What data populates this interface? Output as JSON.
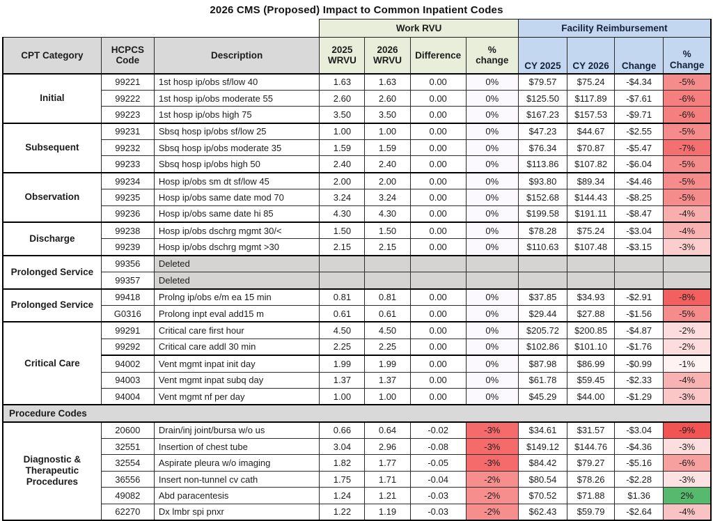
{
  "title": "2026 CMS (Proposed) Impact to Common Inpatient Codes",
  "header": {
    "cpt_category": "CPT Category",
    "hcpcs": "HCPCS\nCode",
    "description": "Description",
    "work_rvu_group": "Work RVU",
    "facility_group": "Facility Reimbursement",
    "w2025": "2025\nWRVU",
    "w2026": "2026\nWRVU",
    "difference": "Difference",
    "wpct": "%\nchange",
    "cy2025": "CY 2025",
    "cy2026": "CY 2026",
    "change": "Change",
    "fpct": "%\nChange"
  },
  "colors": {
    "work_band": "#e8eed9",
    "facility_band": "#c3d7f0",
    "header_gray": "#d9d9d9",
    "deleted_gray": "#d6d3d3",
    "zero_tint": "#fbf9fd",
    "positive_green": "#57b96d"
  },
  "sections": [
    {
      "category": "Initial",
      "rows": [
        {
          "code": "99221",
          "desc": "1st hosp ip/obs sf/low 40",
          "w25": "1.63",
          "w26": "1.63",
          "diff": "0.00",
          "wpct": "0%",
          "wpct_bg": "#fbf9fd",
          "cy25": "$79.57",
          "cy26": "$75.24",
          "chg": "-$4.34",
          "fpct": "-5%",
          "fpct_bg": "#f68b8b"
        },
        {
          "code": "99222",
          "desc": "1st hosp ip/obs moderate 55",
          "w25": "2.60",
          "w26": "2.60",
          "diff": "0.00",
          "wpct": "0%",
          "wpct_bg": "#fbf9fd",
          "cy25": "$125.50",
          "cy26": "$117.89",
          "chg": "-$7.61",
          "fpct": "-6%",
          "fpct_bg": "#f57f7f"
        },
        {
          "code": "99223",
          "desc": "1st hosp ip/obs high 75",
          "w25": "3.50",
          "w26": "3.50",
          "diff": "0.00",
          "wpct": "0%",
          "wpct_bg": "#fbf9fd",
          "cy25": "$167.23",
          "cy26": "$157.53",
          "chg": "-$9.71",
          "fpct": "-6%",
          "fpct_bg": "#f57f7f"
        }
      ]
    },
    {
      "category": "Subsequent",
      "rows": [
        {
          "code": "99231",
          "desc": "Sbsq hosp ip/obs sf/low 25",
          "w25": "1.00",
          "w26": "1.00",
          "diff": "0.00",
          "wpct": "0%",
          "wpct_bg": "#fbf9fd",
          "cy25": "$47.23",
          "cy26": "$44.67",
          "chg": "-$2.55",
          "fpct": "-5%",
          "fpct_bg": "#f68b8b"
        },
        {
          "code": "99232",
          "desc": "Sbsq hosp ip/obs moderate 35",
          "w25": "1.59",
          "w26": "1.59",
          "diff": "0.00",
          "wpct": "0%",
          "wpct_bg": "#fbf9fd",
          "cy25": "$76.34",
          "cy26": "$70.87",
          "chg": "-$5.47",
          "fpct": "-7%",
          "fpct_bg": "#f47070"
        },
        {
          "code": "99233",
          "desc": "Sbsq hosp ip/obs high 50",
          "w25": "2.40",
          "w26": "2.40",
          "diff": "0.00",
          "wpct": "0%",
          "wpct_bg": "#fbf9fd",
          "cy25": "$113.86",
          "cy26": "$107.82",
          "chg": "-$6.04",
          "fpct": "-5%",
          "fpct_bg": "#f68b8b"
        }
      ]
    },
    {
      "category": "Observation",
      "rows": [
        {
          "code": "99234",
          "desc": "Hosp ip/obs sm dt sf/low 45",
          "w25": "2.00",
          "w26": "2.00",
          "diff": "0.00",
          "wpct": "0%",
          "wpct_bg": "#fbf9fd",
          "cy25": "$93.80",
          "cy26": "$89.34",
          "chg": "-$4.46",
          "fpct": "-5%",
          "fpct_bg": "#f68b8b"
        },
        {
          "code": "99235",
          "desc": "Hosp ip/obs same date mod 70",
          "w25": "3.24",
          "w26": "3.24",
          "diff": "0.00",
          "wpct": "0%",
          "wpct_bg": "#fbf9fd",
          "cy25": "$152.68",
          "cy26": "$144.43",
          "chg": "-$8.25",
          "fpct": "-5%",
          "fpct_bg": "#f68b8b"
        },
        {
          "code": "99236",
          "desc": "Hosp ip/obs same date hi 85",
          "w25": "4.30",
          "w26": "4.30",
          "diff": "0.00",
          "wpct": "0%",
          "wpct_bg": "#fbf9fd",
          "cy25": "$199.58",
          "cy26": "$191.11",
          "chg": "-$8.47",
          "fpct": "-4%",
          "fpct_bg": "#f9aeae"
        }
      ]
    },
    {
      "category": "Discharge",
      "rows": [
        {
          "code": "99238",
          "desc": "Hosp ip/obs dschrg mgmt 30/<",
          "w25": "1.50",
          "w26": "1.50",
          "diff": "0.00",
          "wpct": "0%",
          "wpct_bg": "#fbf9fd",
          "cy25": "$78.28",
          "cy26": "$75.24",
          "chg": "-$3.04",
          "fpct": "-4%",
          "fpct_bg": "#f9b2b2"
        },
        {
          "code": "99239",
          "desc": "Hosp ip/obs dschrg mgmt >30",
          "w25": "2.15",
          "w26": "2.15",
          "diff": "0.00",
          "wpct": "0%",
          "wpct_bg": "#fbf9fd",
          "cy25": "$110.63",
          "cy26": "$107.48",
          "chg": "-$3.15",
          "fpct": "-3%",
          "fpct_bg": "#fbcdcd"
        }
      ]
    },
    {
      "category": "Prolonged Service",
      "rows": [
        {
          "code": "99356",
          "desc": "Deleted",
          "deleted": true
        },
        {
          "code": "99357",
          "desc": "Deleted",
          "deleted": true
        }
      ]
    },
    {
      "category": "Prolonged Service",
      "rows": [
        {
          "code": "99418",
          "desc": "Prolng ip/obs e/m ea 15 min",
          "w25": "0.81",
          "w26": "0.81",
          "diff": "0.00",
          "wpct": "0%",
          "wpct_bg": "#fbf9fd",
          "cy25": "$37.85",
          "cy26": "$34.93",
          "chg": "-$2.91",
          "fpct": "-8%",
          "fpct_bg": "#f36060"
        },
        {
          "code": "G0316",
          "desc": "Prolong inpt eval add15 m",
          "w25": "0.61",
          "w26": "0.61",
          "diff": "0.00",
          "wpct": "0%",
          "wpct_bg": "#fbf9fd",
          "cy25": "$29.44",
          "cy26": "$27.88",
          "chg": "-$1.56",
          "fpct": "-5%",
          "fpct_bg": "#f68b8b"
        }
      ]
    },
    {
      "category": "Critical Care",
      "rows": [
        {
          "code": "99291",
          "desc": "Critical care first hour",
          "w25": "4.50",
          "w26": "4.50",
          "diff": "0.00",
          "wpct": "0%",
          "wpct_bg": "#fbf9fd",
          "cy25": "$205.72",
          "cy26": "$200.85",
          "chg": "-$4.87",
          "fpct": "-2%",
          "fpct_bg": "#fcdcdc"
        },
        {
          "code": "99292",
          "desc": "Critical care addl 30 min",
          "w25": "2.25",
          "w26": "2.25",
          "diff": "0.00",
          "wpct": "0%",
          "wpct_bg": "#fbf9fd",
          "cy25": "$102.86",
          "cy26": "$101.10",
          "chg": "-$1.76",
          "fpct": "-2%",
          "fpct_bg": "#fcdcdc"
        },
        {
          "code": "94002",
          "desc": "Vent mgmt inpat init day",
          "w25": "1.99",
          "w26": "1.99",
          "diff": "0.00",
          "wpct": "0%",
          "wpct_bg": "#fbf9fd",
          "cy25": "$87.98",
          "cy26": "$86.99",
          "chg": "-$0.99",
          "fpct": "-1%",
          "fpct_bg": "#fef2f2",
          "thick_top": true
        },
        {
          "code": "94003",
          "desc": "Vent mgmt inpat subq day",
          "w25": "1.37",
          "w26": "1.37",
          "diff": "0.00",
          "wpct": "0%",
          "wpct_bg": "#fbf9fd",
          "cy25": "$61.78",
          "cy26": "$59.45",
          "chg": "-$2.33",
          "fpct": "-4%",
          "fpct_bg": "#f8b2b2"
        },
        {
          "code": "94004",
          "desc": "Vent mgmt nf per day",
          "w25": "1.00",
          "w26": "1.00",
          "diff": "0.00",
          "wpct": "0%",
          "wpct_bg": "#fbf9fd",
          "cy25": "$45.29",
          "cy26": "$44.00",
          "chg": "-$1.29",
          "fpct": "-3%",
          "fpct_bg": "#fbc6c6"
        }
      ]
    },
    {
      "header_label": "Procedure Codes"
    },
    {
      "category": "Diagnostic &\nTherapeutic\nProcedures",
      "rows": [
        {
          "code": "20600",
          "desc": "Drain/inj joint/bursa w/o us",
          "w25": "0.66",
          "w26": "0.64",
          "diff": "-0.02",
          "wpct": "-3%",
          "wpct_bg": "#f56a6a",
          "cy25": "$34.61",
          "cy26": "$31.57",
          "chg": "-$3.04",
          "fpct": "-9%",
          "fpct_bg": "#f25454"
        },
        {
          "code": "32551",
          "desc": "Insertion of chest tube",
          "w25": "3.04",
          "w26": "2.96",
          "diff": "-0.08",
          "wpct": "-3%",
          "wpct_bg": "#f56a6a",
          "cy25": "$149.12",
          "cy26": "$144.76",
          "chg": "-$4.36",
          "fpct": "-3%",
          "fpct_bg": "#fcdede"
        },
        {
          "code": "32554",
          "desc": "Aspirate pleura w/o imaging",
          "w25": "1.82",
          "w26": "1.77",
          "diff": "-0.05",
          "wpct": "-3%",
          "wpct_bg": "#f56a6a",
          "cy25": "$84.42",
          "cy26": "$79.27",
          "chg": "-$5.16",
          "fpct": "-6%",
          "fpct_bg": "#f7a0a0"
        },
        {
          "code": "36556",
          "desc": "Insert non-tunnel cv cath",
          "w25": "1.75",
          "w26": "1.71",
          "diff": "-0.04",
          "wpct": "-2%",
          "wpct_bg": "#f78e8e",
          "cy25": "$80.54",
          "cy26": "$78.26",
          "chg": "-$2.28",
          "fpct": "-3%",
          "fpct_bg": "#fce2e2"
        },
        {
          "code": "49082",
          "desc": "Abd paracentesis",
          "w25": "1.24",
          "w26": "1.21",
          "diff": "-0.03",
          "wpct": "-2%",
          "wpct_bg": "#f78e8e",
          "cy25": "$70.52",
          "cy26": "$71.88",
          "chg": "$1.36",
          "fpct": "2%",
          "fpct_bg": "#57b96d"
        },
        {
          "code": "62270",
          "desc": "Dx lmbr spi pnxr",
          "w25": "1.22",
          "w26": "1.19",
          "diff": "-0.03",
          "wpct": "-2%",
          "wpct_bg": "#f78e8e",
          "cy25": "$62.43",
          "cy26": "$59.79",
          "chg": "-$2.64",
          "fpct": "-4%",
          "fpct_bg": "#f9c3c3"
        }
      ]
    }
  ]
}
